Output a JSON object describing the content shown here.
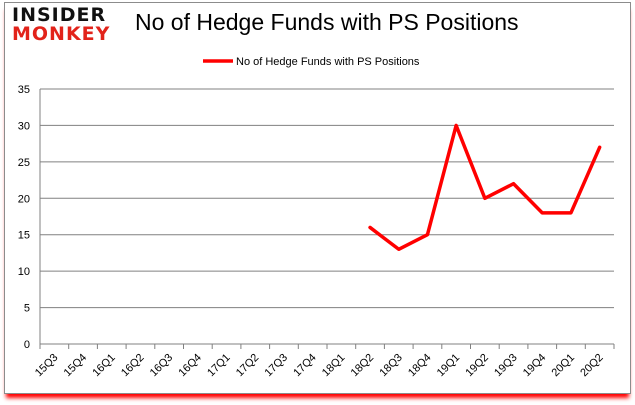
{
  "logo": {
    "line1": "INSIDER",
    "line2": "MONKEY"
  },
  "title": "No of Hedge Funds with PS Positions",
  "colors": {
    "line": "#ff0000",
    "grid": "#808080",
    "shadow": "#ff0000"
  },
  "chart_data": {
    "type": "line",
    "title": "No of Hedge Funds with PS Positions",
    "xlabel": "",
    "ylabel": "",
    "ylim": [
      0,
      35
    ],
    "yticks": [
      0,
      5,
      10,
      15,
      20,
      25,
      30,
      35
    ],
    "grid": true,
    "legend_position": "top",
    "categories": [
      "15Q3",
      "15Q4",
      "16Q1",
      "16Q2",
      "16Q3",
      "16Q4",
      "17Q1",
      "17Q2",
      "17Q3",
      "17Q4",
      "18Q1",
      "18Q2",
      "18Q3",
      "18Q4",
      "19Q1",
      "19Q2",
      "19Q3",
      "19Q4",
      "20Q1",
      "20Q2"
    ],
    "series": [
      {
        "name": "No of Hedge Funds with PS Positions",
        "values": [
          null,
          null,
          null,
          null,
          null,
          null,
          null,
          null,
          null,
          null,
          null,
          16,
          13,
          15,
          30,
          20,
          22,
          18,
          18,
          27
        ]
      }
    ]
  }
}
